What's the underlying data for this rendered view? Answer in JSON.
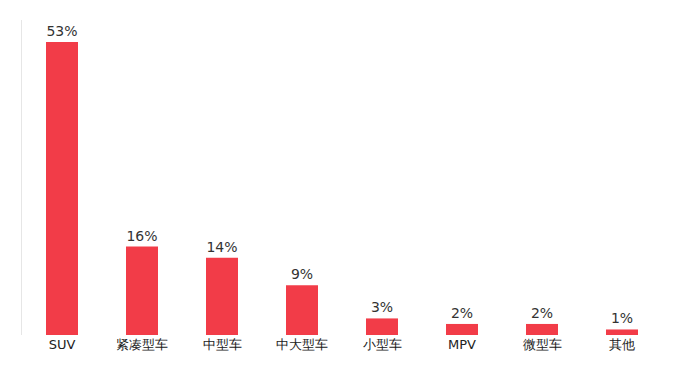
{
  "chart_data": {
    "type": "bar",
    "categories": [
      "SUV",
      "紧凑型车",
      "中型车",
      "中大型车",
      "小型车",
      "MPV",
      "微型车",
      "其他"
    ],
    "values": [
      53,
      16,
      14,
      9,
      3,
      2,
      2,
      1
    ],
    "value_labels": [
      "53%",
      "16%",
      "14%",
      "9%",
      "3%",
      "2%",
      "2%",
      "1%"
    ],
    "color": "#f23c48",
    "ylim": [
      0,
      57
    ],
    "grid": false,
    "data_labels": true,
    "tick_labels": "x"
  }
}
